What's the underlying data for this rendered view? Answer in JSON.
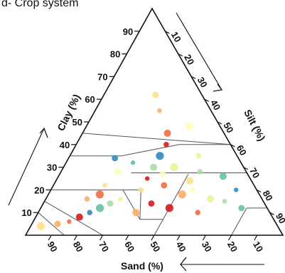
{
  "panel_label": "d- Crop system",
  "chart_data": {
    "type": "scatter",
    "subtype": "ternary",
    "title": "d- Crop system",
    "axes": {
      "clay": {
        "label": "Clay (%)",
        "ticks": [
          "10",
          "20",
          "30",
          "40",
          "50",
          "60",
          "70",
          "80",
          "90"
        ]
      },
      "silt": {
        "label": "Silt (%)",
        "ticks": [
          "10",
          "20",
          "30",
          "40",
          "50",
          "60",
          "70",
          "80",
          "90"
        ]
      },
      "sand": {
        "label": "Sand (%)",
        "ticks": [
          "90",
          "80",
          "70",
          "60",
          "50",
          "40",
          "30",
          "20",
          "10"
        ]
      }
    },
    "grid": false,
    "classification_lines": true,
    "colors": [
      "#d7191c",
      "#f46d43",
      "#fdae61",
      "#fee08b",
      "#ffffbf",
      "#e6f598",
      "#abdda4",
      "#66c2a5",
      "#3288bd"
    ],
    "points": [
      {
        "sand": 40,
        "clay": 25,
        "silt": 35
      },
      {
        "sand": 35,
        "clay": 22,
        "silt": 43
      },
      {
        "sand": 30,
        "clay": 18,
        "silt": 52
      },
      {
        "sand": 45,
        "clay": 20,
        "silt": 35
      },
      {
        "sand": 50,
        "clay": 28,
        "silt": 22
      },
      {
        "sand": 55,
        "clay": 16,
        "silt": 29
      },
      {
        "sand": 60,
        "clay": 14,
        "silt": 26
      },
      {
        "sand": 65,
        "clay": 12,
        "silt": 23
      },
      {
        "sand": 70,
        "clay": 10,
        "silt": 20
      },
      {
        "sand": 75,
        "clay": 8,
        "silt": 17
      },
      {
        "sand": 80,
        "clay": 6,
        "silt": 14
      },
      {
        "sand": 85,
        "clay": 5,
        "silt": 10
      },
      {
        "sand": 92,
        "clay": 4,
        "silt": 4
      },
      {
        "sand": 25,
        "clay": 20,
        "silt": 55
      },
      {
        "sand": 20,
        "clay": 16,
        "silt": 64
      },
      {
        "sand": 15,
        "clay": 15,
        "silt": 70
      },
      {
        "sand": 10,
        "clay": 12,
        "silt": 78
      },
      {
        "sand": 30,
        "clay": 35,
        "silt": 35
      },
      {
        "sand": 25,
        "clay": 40,
        "silt": 35
      },
      {
        "sand": 22,
        "clay": 45,
        "silt": 33
      },
      {
        "sand": 20,
        "clay": 55,
        "silt": 25
      },
      {
        "sand": 18,
        "clay": 62,
        "silt": 20
      },
      {
        "sand": 12,
        "clay": 48,
        "silt": 40
      },
      {
        "sand": 15,
        "clay": 35,
        "silt": 50
      },
      {
        "sand": 35,
        "clay": 30,
        "silt": 35
      },
      {
        "sand": 42,
        "clay": 32,
        "silt": 26
      },
      {
        "sand": 48,
        "clay": 34,
        "silt": 18
      },
      {
        "sand": 38,
        "clay": 12,
        "silt": 50
      },
      {
        "sand": 28,
        "clay": 10,
        "silt": 62
      },
      {
        "sand": 52,
        "clay": 10,
        "silt": 38
      },
      {
        "sand": 58,
        "clay": 22,
        "silt": 20
      },
      {
        "sand": 33,
        "clay": 27,
        "silt": 40
      },
      {
        "sand": 27,
        "clay": 30,
        "silt": 43
      },
      {
        "sand": 18,
        "clay": 28,
        "silt": 54
      },
      {
        "sand": 10,
        "clay": 26,
        "silt": 64
      },
      {
        "sand": 8,
        "clay": 20,
        "silt": 72
      },
      {
        "sand": 44,
        "clay": 14,
        "silt": 42
      },
      {
        "sand": 62,
        "clay": 18,
        "silt": 20
      },
      {
        "sand": 68,
        "clay": 16,
        "silt": 16
      },
      {
        "sand": 24,
        "clay": 24,
        "silt": 52
      }
    ]
  }
}
